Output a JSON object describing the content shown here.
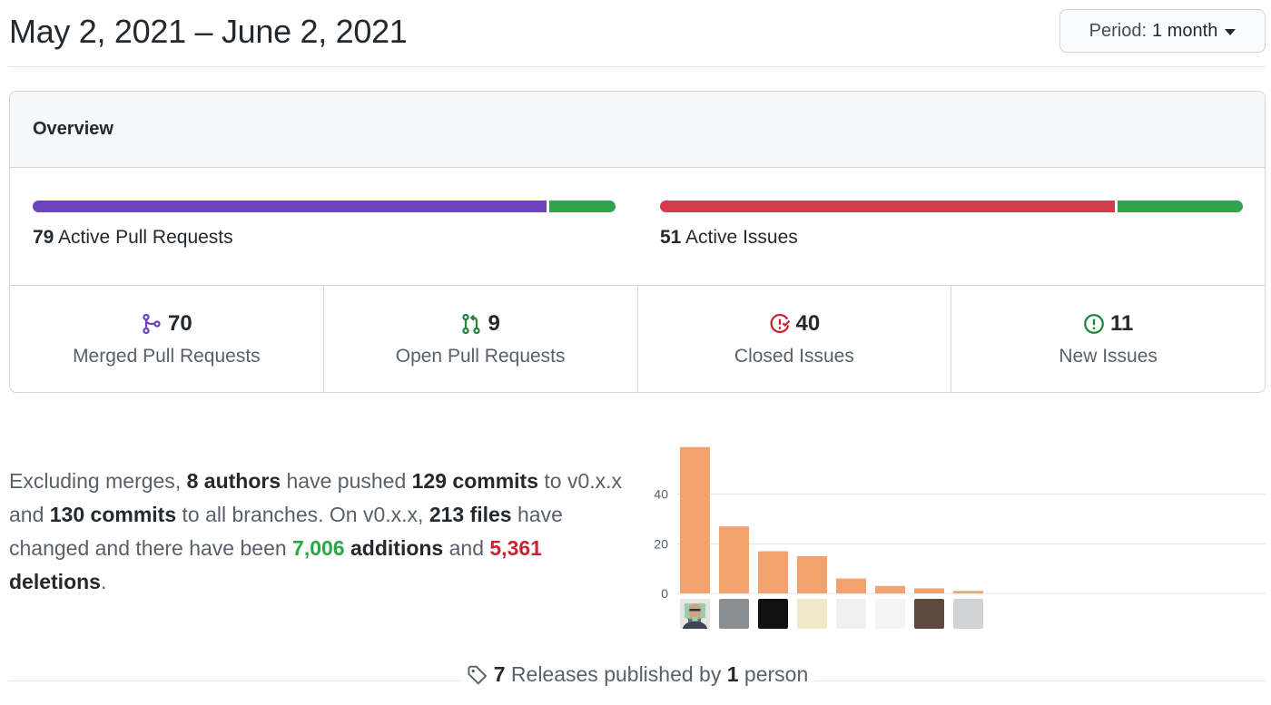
{
  "header": {
    "date_range": "May 2, 2021 – June 2, 2021",
    "period_prefix": "Period:",
    "period_value": "1 month"
  },
  "overview": {
    "title": "Overview",
    "pull_requests": {
      "count": "79",
      "label": "Active Pull Requests",
      "merged_fraction": 0.886,
      "open_fraction": 0.114,
      "merged_color": "#6f42c1",
      "open_color": "#2ea44f"
    },
    "issues": {
      "count": "51",
      "label": "Active Issues",
      "closed_fraction": 0.784,
      "new_fraction": 0.216,
      "closed_color": "#d73a49",
      "new_color": "#2ea44f"
    },
    "stats": [
      {
        "icon": "git-merge-icon",
        "value": "70",
        "label": "Merged Pull Requests",
        "color": "#6f42c1"
      },
      {
        "icon": "git-pull-request-icon",
        "value": "9",
        "label": "Open Pull Requests",
        "color": "#22863a"
      },
      {
        "icon": "issue-closed-icon",
        "value": "40",
        "label": "Closed Issues",
        "color": "#cb2431"
      },
      {
        "icon": "issue-opened-icon",
        "value": "11",
        "label": "New Issues",
        "color": "#22863a"
      }
    ]
  },
  "summary": {
    "t1": "Excluding merges, ",
    "authors": "8 authors",
    "t2": " have pushed ",
    "commits_main": "129 commits",
    "t3": " to v0.x.x and ",
    "commits_all": "130 commits",
    "t4": " to all branches. On v0.x.x, ",
    "files": "213 files",
    "t5": " have changed and there have been ",
    "additions_num": "7,006",
    "additions_word": " additions",
    "t6": " and ",
    "deletions_num": "5,361",
    "deletions_word": " deletions",
    "t7": "."
  },
  "chart_data": {
    "type": "bar",
    "categories": [
      "author-1",
      "author-2",
      "author-3",
      "author-4",
      "author-5",
      "author-6",
      "author-7",
      "author-8"
    ],
    "values": [
      59,
      27,
      17,
      15,
      6,
      3,
      2,
      1
    ],
    "ylim": [
      0,
      60
    ],
    "yticks": [
      0,
      20,
      40
    ],
    "grid": true,
    "bar_color": "#f2a26d"
  },
  "releases": {
    "icon": "tag-icon",
    "count": "7",
    "text_mid": " Releases published by ",
    "people": "1",
    "text_end": " person"
  }
}
